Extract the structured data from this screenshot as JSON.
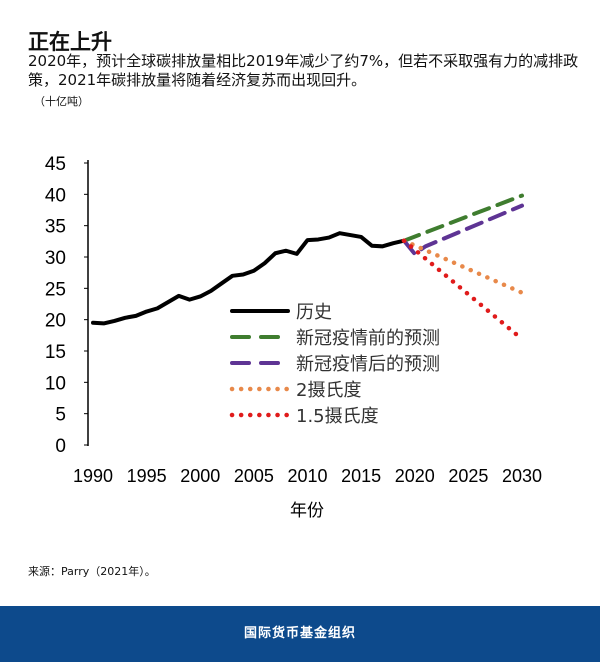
{
  "title": "正在上升",
  "subtitle": "2020年，预计全球碳排放量相比2019年减少了约7%，但若不采取强有力的减排政策，2021年碳排放量将随着经济复苏而出现回升。",
  "unit": "（十亿吨）",
  "source": "来源：Parry（2021年）。",
  "footer": "国际货币基金组织",
  "chart_data": {
    "type": "line",
    "xlabel": "年份",
    "ylabel": "",
    "xlim": [
      1990,
      2030
    ],
    "ylim": [
      0,
      45
    ],
    "xticks": [
      "1990",
      "1995",
      "2000",
      "2005",
      "2010",
      "2015",
      "2020",
      "2025",
      "2030"
    ],
    "yticks": [
      "0",
      "5",
      "10",
      "15",
      "20",
      "25",
      "30",
      "35",
      "40",
      "45"
    ],
    "grid": false,
    "legend": "center",
    "series": [
      {
        "name": "历史",
        "style": "solid",
        "color": "#000000",
        "x": [
          1990,
          1991,
          1992,
          1993,
          1994,
          1995,
          1996,
          1997,
          1998,
          1999,
          2000,
          2001,
          2002,
          2003,
          2004,
          2005,
          2006,
          2007,
          2008,
          2009,
          2010,
          2011,
          2012,
          2013,
          2014,
          2015,
          2016,
          2017,
          2018,
          2019
        ],
        "y": [
          19.5,
          19.4,
          19.8,
          20.3,
          20.6,
          21.3,
          21.8,
          22.8,
          23.8,
          23.2,
          23.7,
          24.6,
          25.8,
          27.0,
          27.2,
          27.8,
          29.0,
          30.6,
          31.0,
          30.5,
          32.7,
          32.8,
          33.1,
          33.8,
          33.5,
          33.2,
          31.8,
          31.7,
          32.2,
          32.6
        ]
      },
      {
        "name": "新冠疫情前的预测",
        "style": "dashed",
        "color": "#3f7d2f",
        "x": [
          2019,
          2030
        ],
        "y": [
          32.6,
          39.8
        ]
      },
      {
        "name": "新冠疫情后的预测",
        "style": "dashed",
        "color": "#5e3494",
        "x": [
          2019,
          2020,
          2021,
          2030
        ],
        "y": [
          32.6,
          30.5,
          31.7,
          38.2
        ]
      },
      {
        "name": "2摄氏度",
        "style": "dotted",
        "color": "#e8894a",
        "x": [
          2019,
          2030
        ],
        "y": [
          32.6,
          24.3
        ]
      },
      {
        "name": "1.5摄氏度",
        "style": "dotted",
        "color": "#e01b1b",
        "x": [
          2019,
          2030
        ],
        "y": [
          32.6,
          16.9
        ]
      }
    ]
  }
}
